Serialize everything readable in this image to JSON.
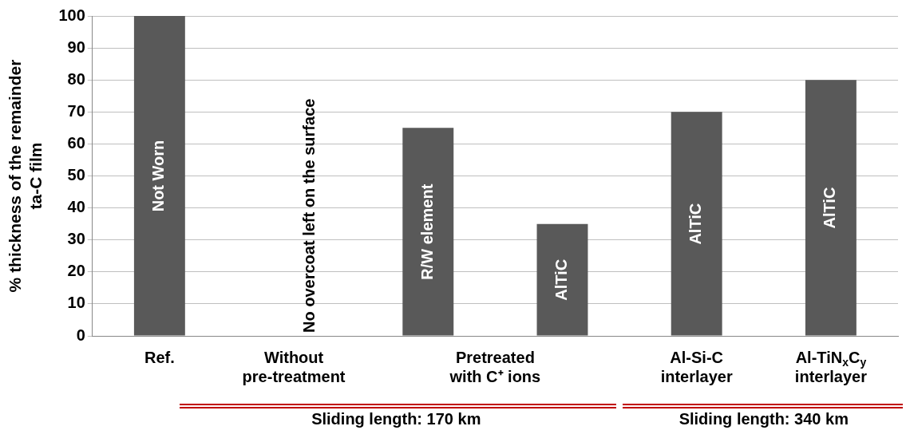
{
  "chart_data": {
    "type": "bar",
    "ylabel": "% thickness of the remainder ta-C film",
    "categories": [
      "Ref.",
      "Without pre-treatment",
      null,
      null,
      "Al-Si-C interlayer",
      "Al-TiN$_{x}$C$_{y}$ interlayer"
    ],
    "values": [
      100,
      null,
      65,
      35,
      70,
      80
    ],
    "color": "#595959",
    "ylim": [
      0,
      100
    ],
    "yticks": [
      0,
      10,
      20,
      30,
      40,
      50,
      60,
      70,
      80,
      90,
      100
    ],
    "grid": "y",
    "legend": false,
    "annotations": [
      "Not Worn",
      "No overcoat left on the surface",
      "R/W element",
      "AlTiC",
      "AlTiC",
      "AlTiC",
      "Pretreated with C⁺ ions",
      "Sliding length: 170 km",
      "Sliding length: 340 km"
    ]
  }
}
